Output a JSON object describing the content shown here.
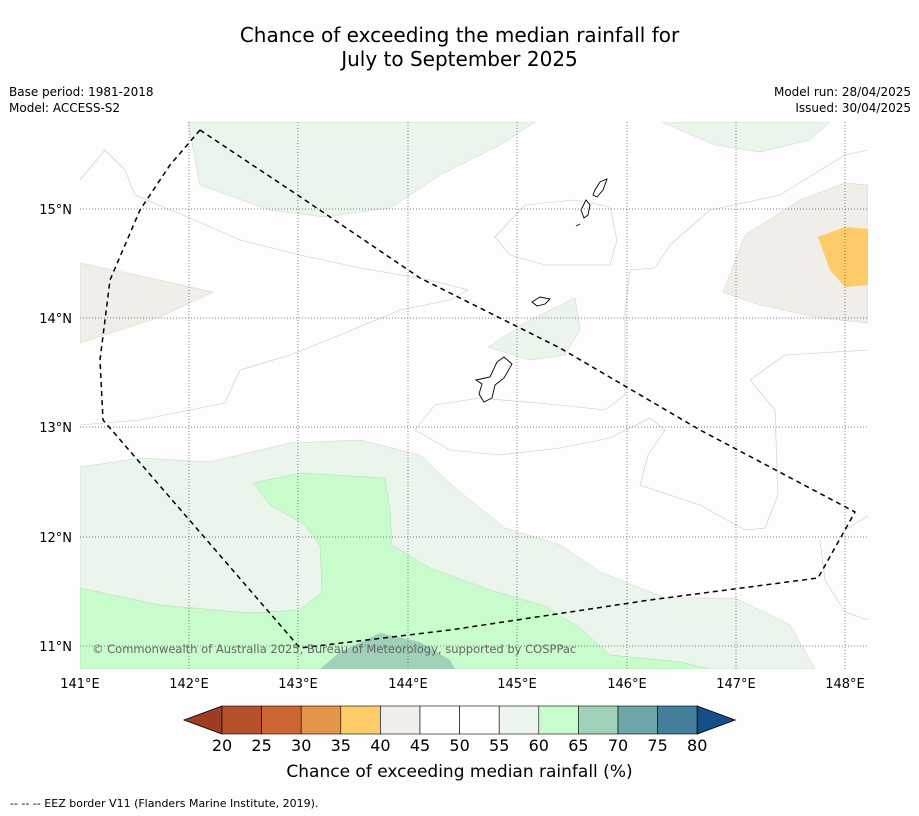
{
  "title_line1": "Chance of exceeding the median rainfall for",
  "title_line2": "July to September 2025",
  "base_period": "Base period: 1981-2018",
  "model": "Model: ACCESS-S2",
  "model_run": "Model run: 28/04/2025",
  "issued": "Issued: 30/04/2025",
  "lat_labels": [
    "15°N",
    "14°N",
    "13°N",
    "12°N",
    "11°N"
  ],
  "lon_labels": [
    "141°E",
    "142°E",
    "143°E",
    "144°E",
    "145°E",
    "146°E",
    "147°E",
    "148°E"
  ],
  "copyright": "© Commonwealth of Australia 2025, Bureau of Meteorology, supported by COSPPac",
  "colorbar": {
    "ticks": [
      "20",
      "25",
      "30",
      "35",
      "40",
      "45",
      "50",
      "55",
      "60",
      "65",
      "70",
      "75",
      "80"
    ],
    "colors": [
      "#9e3d22",
      "#b5502b",
      "#cd6632",
      "#e3964a",
      "#fdcb67",
      "#f1ede9",
      "#ffffff",
      "#ffffff",
      "#ebf5eb",
      "#c9fccc",
      "#9fd0b8",
      "#6ea5a9",
      "#437e9a",
      "#164f86"
    ],
    "title": "Chance of exceeding median rainfall (%)"
  },
  "footnote": "--  --  -- EEZ border V11 (Flanders Marine Institute, 2019)."
}
